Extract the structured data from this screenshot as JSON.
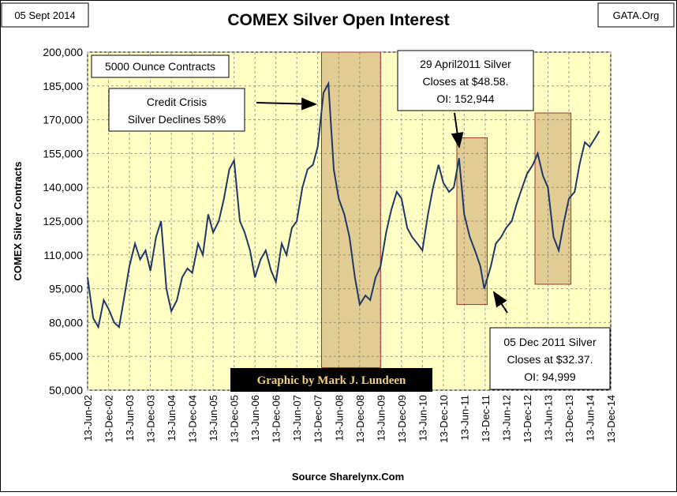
{
  "chart_data": {
    "type": "line",
    "title": "COMEX Silver Open Interest",
    "date_label": "05 Sept 2014",
    "source_tag": "GATA.Org",
    "xlabel": "Source Sharelynx.Com",
    "ylabel": "COMEX Silver Contracts",
    "units_note": "5000 Ounce Contracts",
    "credit": "Graphic by Mark J. Lundeen",
    "annotations": [
      {
        "lines": [
          "Credit Crisis",
          "Silver Declines 58%"
        ]
      },
      {
        "lines": [
          "29 April2011 Silver",
          "Closes at $48.58.",
          "OI:  152,944"
        ]
      },
      {
        "lines": [
          "05 Dec 2011 Silver",
          "Closes at $32.37.",
          "OI: 94,999"
        ]
      }
    ],
    "highlights": [
      {
        "x": [
          "2008-01-15",
          "2009-06-13"
        ],
        "y": [
          60000,
          200000
        ]
      },
      {
        "x": [
          "2011-04-10",
          "2011-12-31"
        ],
        "y": [
          88000,
          162000
        ]
      },
      {
        "x": [
          "2013-02-20",
          "2013-12-31"
        ],
        "y": [
          97000,
          173000
        ]
      }
    ],
    "x": [
      "2002-06-13",
      "2002-08-01",
      "2002-09-15",
      "2002-11-01",
      "2002-12-13",
      "2003-02-01",
      "2003-03-15",
      "2003-05-01",
      "2003-06-13",
      "2003-08-01",
      "2003-09-15",
      "2003-11-01",
      "2003-12-13",
      "2004-02-01",
      "2004-03-15",
      "2004-05-01",
      "2004-06-13",
      "2004-08-01",
      "2004-09-15",
      "2004-11-01",
      "2004-12-13",
      "2005-02-01",
      "2005-03-15",
      "2005-05-01",
      "2005-06-13",
      "2005-08-01",
      "2005-09-15",
      "2005-11-01",
      "2005-12-13",
      "2006-02-01",
      "2006-03-15",
      "2006-05-01",
      "2006-06-13",
      "2006-08-01",
      "2006-09-15",
      "2006-11-01",
      "2006-12-13",
      "2007-02-01",
      "2007-03-15",
      "2007-05-01",
      "2007-06-13",
      "2007-08-01",
      "2007-09-15",
      "2007-11-01",
      "2007-12-13",
      "2008-02-01",
      "2008-03-15",
      "2008-05-01",
      "2008-06-13",
      "2008-08-01",
      "2008-09-15",
      "2008-11-01",
      "2008-12-13",
      "2009-02-01",
      "2009-03-15",
      "2009-05-01",
      "2009-06-13",
      "2009-08-01",
      "2009-09-15",
      "2009-11-01",
      "2009-12-13",
      "2010-02-01",
      "2010-03-15",
      "2010-05-01",
      "2010-06-13",
      "2010-08-01",
      "2010-09-15",
      "2010-11-01",
      "2010-12-13",
      "2011-02-01",
      "2011-03-15",
      "2011-04-29",
      "2011-06-13",
      "2011-08-01",
      "2011-09-15",
      "2011-11-01",
      "2011-12-05",
      "2012-02-01",
      "2012-03-15",
      "2012-05-01",
      "2012-06-13",
      "2012-08-01",
      "2012-09-15",
      "2012-11-01",
      "2012-12-13",
      "2013-02-01",
      "2013-03-15",
      "2013-05-01",
      "2013-06-13",
      "2013-08-01",
      "2013-09-15",
      "2013-11-01",
      "2013-12-13",
      "2014-02-01",
      "2014-03-15",
      "2014-05-01",
      "2014-06-13",
      "2014-08-01",
      "2014-09-05"
    ],
    "series": [
      {
        "name": "COMEX Silver Contracts",
        "color": "#1f3864",
        "values": [
          100000,
          82000,
          78000,
          90000,
          86000,
          80000,
          78000,
          92000,
          105000,
          115000,
          108000,
          112000,
          103000,
          118000,
          125000,
          95000,
          85000,
          90000,
          100000,
          104000,
          102000,
          115000,
          110000,
          128000,
          120000,
          125000,
          135000,
          148000,
          152000,
          125000,
          120000,
          112000,
          100000,
          108000,
          112000,
          103000,
          98000,
          115000,
          110000,
          122000,
          125000,
          140000,
          148000,
          150000,
          158000,
          182000,
          186000,
          148000,
          135000,
          128000,
          118000,
          100000,
          88000,
          92000,
          90000,
          100000,
          105000,
          120000,
          130000,
          138000,
          135000,
          122000,
          118000,
          115000,
          112000,
          128000,
          140000,
          150000,
          142000,
          138000,
          140000,
          152944,
          128000,
          118000,
          112000,
          105000,
          94999,
          105000,
          115000,
          118000,
          122000,
          125000,
          133000,
          140000,
          146000,
          150000,
          155000,
          145000,
          140000,
          118000,
          112000,
          125000,
          135000,
          138000,
          150000,
          160000,
          158000,
          162000,
          165000
        ]
      }
    ],
    "xlim": [
      "2002-06-13",
      "2014-12-13"
    ],
    "xticks": [
      {
        "value": "2002-06-13",
        "label": "13-Jun-02"
      },
      {
        "value": "2002-12-13",
        "label": "13-Dec-02"
      },
      {
        "value": "2003-06-13",
        "label": "13-Jun-03"
      },
      {
        "value": "2003-12-13",
        "label": "13-Dec-03"
      },
      {
        "value": "2004-06-13",
        "label": "13-Jun-04"
      },
      {
        "value": "2004-12-13",
        "label": "13-Dec-04"
      },
      {
        "value": "2005-06-13",
        "label": "13-Jun-05"
      },
      {
        "value": "2005-12-13",
        "label": "13-Dec-05"
      },
      {
        "value": "2006-06-13",
        "label": "13-Jun-06"
      },
      {
        "value": "2006-12-13",
        "label": "13-Dec-06"
      },
      {
        "value": "2007-06-13",
        "label": "13-Jun-07"
      },
      {
        "value": "2007-12-13",
        "label": "13-Dec-07"
      },
      {
        "value": "2008-06-13",
        "label": "13-Jun-08"
      },
      {
        "value": "2008-12-13",
        "label": "13-Dec-08"
      },
      {
        "value": "2009-06-13",
        "label": "13-Jun-09"
      },
      {
        "value": "2009-12-13",
        "label": "13-Dec-09"
      },
      {
        "value": "2010-06-13",
        "label": "13-Jun-10"
      },
      {
        "value": "2010-12-13",
        "label": "13-Dec-10"
      },
      {
        "value": "2011-06-13",
        "label": "13-Jun-11"
      },
      {
        "value": "2011-12-13",
        "label": "13-Dec-11"
      },
      {
        "value": "2012-06-13",
        "label": "13-Jun-12"
      },
      {
        "value": "2012-12-13",
        "label": "13-Dec-12"
      },
      {
        "value": "2013-06-13",
        "label": "13-Jun-13"
      },
      {
        "value": "2013-12-13",
        "label": "13-Dec-13"
      },
      {
        "value": "2014-06-13",
        "label": "13-Jun-14"
      },
      {
        "value": "2014-12-13",
        "label": "13-Dec-14"
      }
    ],
    "ylim": [
      50000,
      200000
    ],
    "yticks": [
      {
        "value": 50000,
        "label": "50,000"
      },
      {
        "value": 65000,
        "label": "65,000"
      },
      {
        "value": 80000,
        "label": "80,000"
      },
      {
        "value": 95000,
        "label": "95,000"
      },
      {
        "value": 110000,
        "label": "110,000"
      },
      {
        "value": 125000,
        "label": "125,000"
      },
      {
        "value": 140000,
        "label": "140,000"
      },
      {
        "value": 155000,
        "label": "155,000"
      },
      {
        "value": 170000,
        "label": "170,000"
      },
      {
        "value": 185000,
        "label": "185,000"
      },
      {
        "value": 200000,
        "label": "200,000"
      }
    ],
    "grid": true
  }
}
